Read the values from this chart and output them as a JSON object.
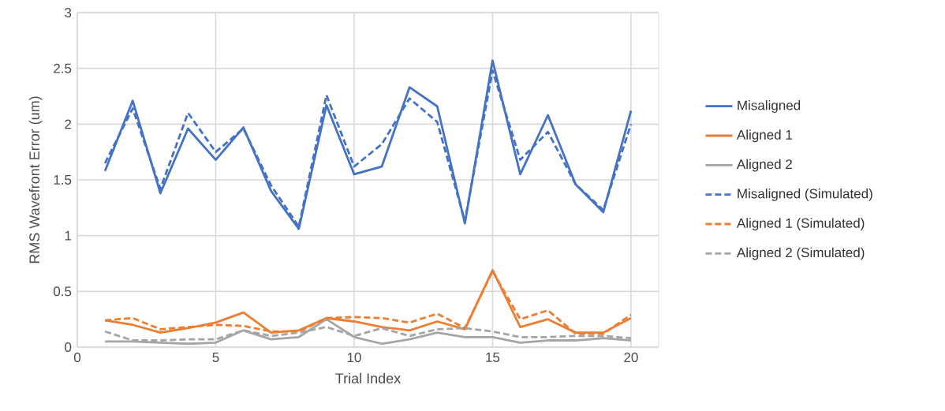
{
  "chart_data": {
    "type": "line",
    "xlabel": "Trial Index",
    "ylabel": "RMS Wavefront Error (um)",
    "x": [
      1,
      2,
      3,
      4,
      5,
      6,
      7,
      8,
      9,
      10,
      11,
      12,
      13,
      14,
      15,
      16,
      17,
      18,
      19,
      20
    ],
    "xlim": [
      0,
      21
    ],
    "xticks": [
      0,
      5,
      10,
      15,
      20
    ],
    "ylim": [
      0,
      3
    ],
    "yticks": [
      0,
      0.5,
      1,
      1.5,
      2,
      2.5,
      3
    ],
    "grid": true,
    "legend": "right",
    "series": [
      {
        "name": "Misaligned",
        "color": "#4472c4",
        "line_style": "solid",
        "values": [
          1.58,
          2.21,
          1.38,
          1.96,
          1.68,
          1.97,
          1.4,
          1.06,
          2.17,
          1.55,
          1.62,
          2.33,
          2.16,
          1.11,
          2.57,
          1.55,
          2.08,
          1.46,
          1.21,
          2.12
        ]
      },
      {
        "name": "Aligned 1",
        "color": "#ed7d31",
        "line_style": "solid",
        "values": [
          0.24,
          0.2,
          0.13,
          0.17,
          0.22,
          0.31,
          0.13,
          0.15,
          0.26,
          0.23,
          0.18,
          0.15,
          0.23,
          0.16,
          0.69,
          0.18,
          0.25,
          0.13,
          0.13,
          0.26
        ]
      },
      {
        "name": "Aligned 2",
        "color": "#a5a5a5",
        "line_style": "solid",
        "values": [
          0.05,
          0.05,
          0.04,
          0.03,
          0.04,
          0.15,
          0.07,
          0.09,
          0.25,
          0.09,
          0.03,
          0.07,
          0.13,
          0.09,
          0.09,
          0.04,
          0.06,
          0.06,
          0.08,
          0.06
        ]
      },
      {
        "name": "Misaligned (Simulated)",
        "color": "#4472c4",
        "line_style": "dashed",
        "values": [
          1.65,
          2.14,
          1.42,
          2.1,
          1.75,
          1.96,
          1.45,
          1.08,
          2.26,
          1.62,
          1.82,
          2.23,
          2.02,
          1.13,
          2.48,
          1.68,
          1.93,
          1.46,
          1.23,
          2.0
        ]
      },
      {
        "name": "Aligned 1 (Simulated)",
        "color": "#ed7d31",
        "line_style": "dashed",
        "values": [
          0.24,
          0.26,
          0.16,
          0.18,
          0.2,
          0.19,
          0.14,
          0.14,
          0.26,
          0.27,
          0.26,
          0.22,
          0.3,
          0.17,
          0.68,
          0.25,
          0.33,
          0.12,
          0.12,
          0.29
        ]
      },
      {
        "name": "Aligned 2 (Simulated)",
        "color": "#a5a5a5",
        "line_style": "dashed",
        "values": [
          0.14,
          0.06,
          0.06,
          0.07,
          0.07,
          0.15,
          0.1,
          0.13,
          0.18,
          0.1,
          0.17,
          0.1,
          0.16,
          0.17,
          0.14,
          0.09,
          0.09,
          0.1,
          0.1,
          0.08
        ]
      }
    ]
  }
}
